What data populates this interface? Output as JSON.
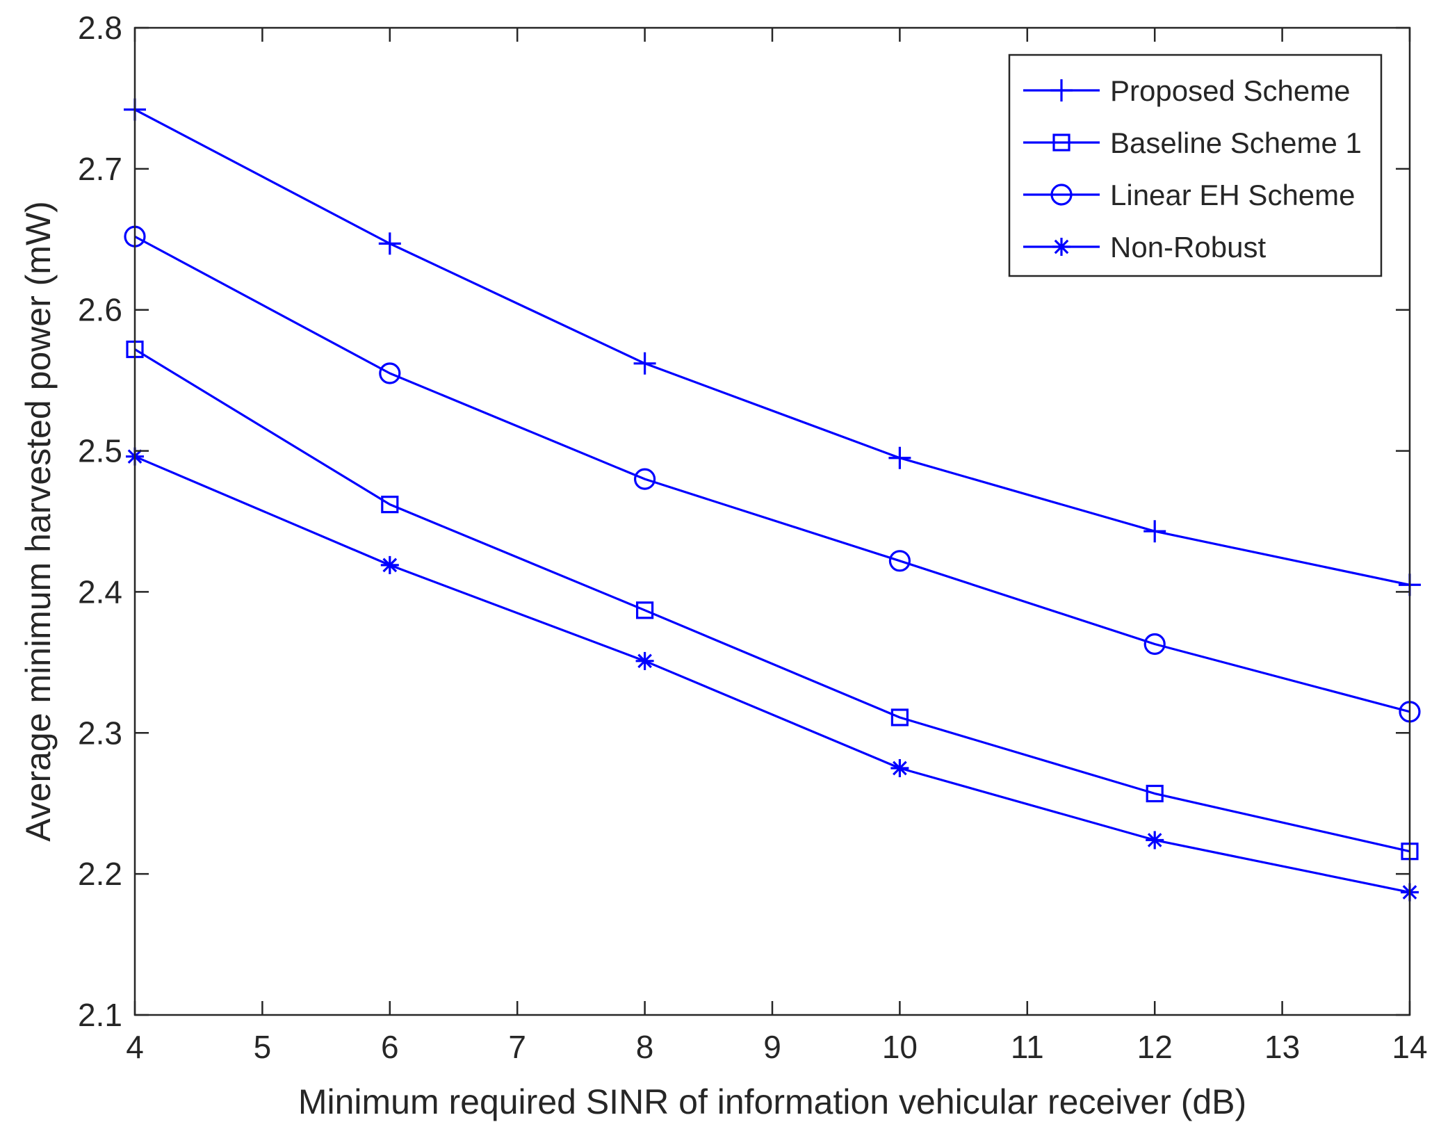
{
  "chart_data": {
    "type": "line",
    "title": "",
    "xlabel": "Minimum required SINR of information vehicular receiver (dB)",
    "ylabel": "Average minimum harvested power (mW)",
    "x": [
      4,
      6,
      8,
      10,
      12,
      14
    ],
    "xlim": [
      4,
      14
    ],
    "ylim": [
      2.1,
      2.8
    ],
    "xticks": [
      4,
      5,
      6,
      7,
      8,
      9,
      10,
      11,
      12,
      13,
      14
    ],
    "xtick_labels": [
      "4",
      "5",
      "6",
      "7",
      "8",
      "9",
      "10",
      "11",
      "12",
      "13",
      "14"
    ],
    "yticks": [
      2.1,
      2.2,
      2.3,
      2.4,
      2.5,
      2.6,
      2.7,
      2.8
    ],
    "ytick_labels": [
      "2.1",
      "2.2",
      "2.3",
      "2.4",
      "2.5",
      "2.6",
      "2.7",
      "2.8"
    ],
    "grid": false,
    "legend_position": "top-right",
    "line_color": "#0000ff",
    "series": [
      {
        "name": "Proposed Scheme",
        "marker": "plus",
        "values": [
          2.742,
          2.647,
          2.562,
          2.495,
          2.443,
          2.405
        ]
      },
      {
        "name": "Baseline Scheme 1",
        "marker": "square",
        "values": [
          2.572,
          2.462,
          2.387,
          2.311,
          2.257,
          2.216
        ]
      },
      {
        "name": "Linear EH Scheme",
        "marker": "circle",
        "values": [
          2.652,
          2.555,
          2.48,
          2.422,
          2.363,
          2.315
        ]
      },
      {
        "name": "Non-Robust",
        "marker": "asterisk",
        "values": [
          2.496,
          2.419,
          2.351,
          2.275,
          2.224,
          2.187
        ]
      }
    ]
  }
}
